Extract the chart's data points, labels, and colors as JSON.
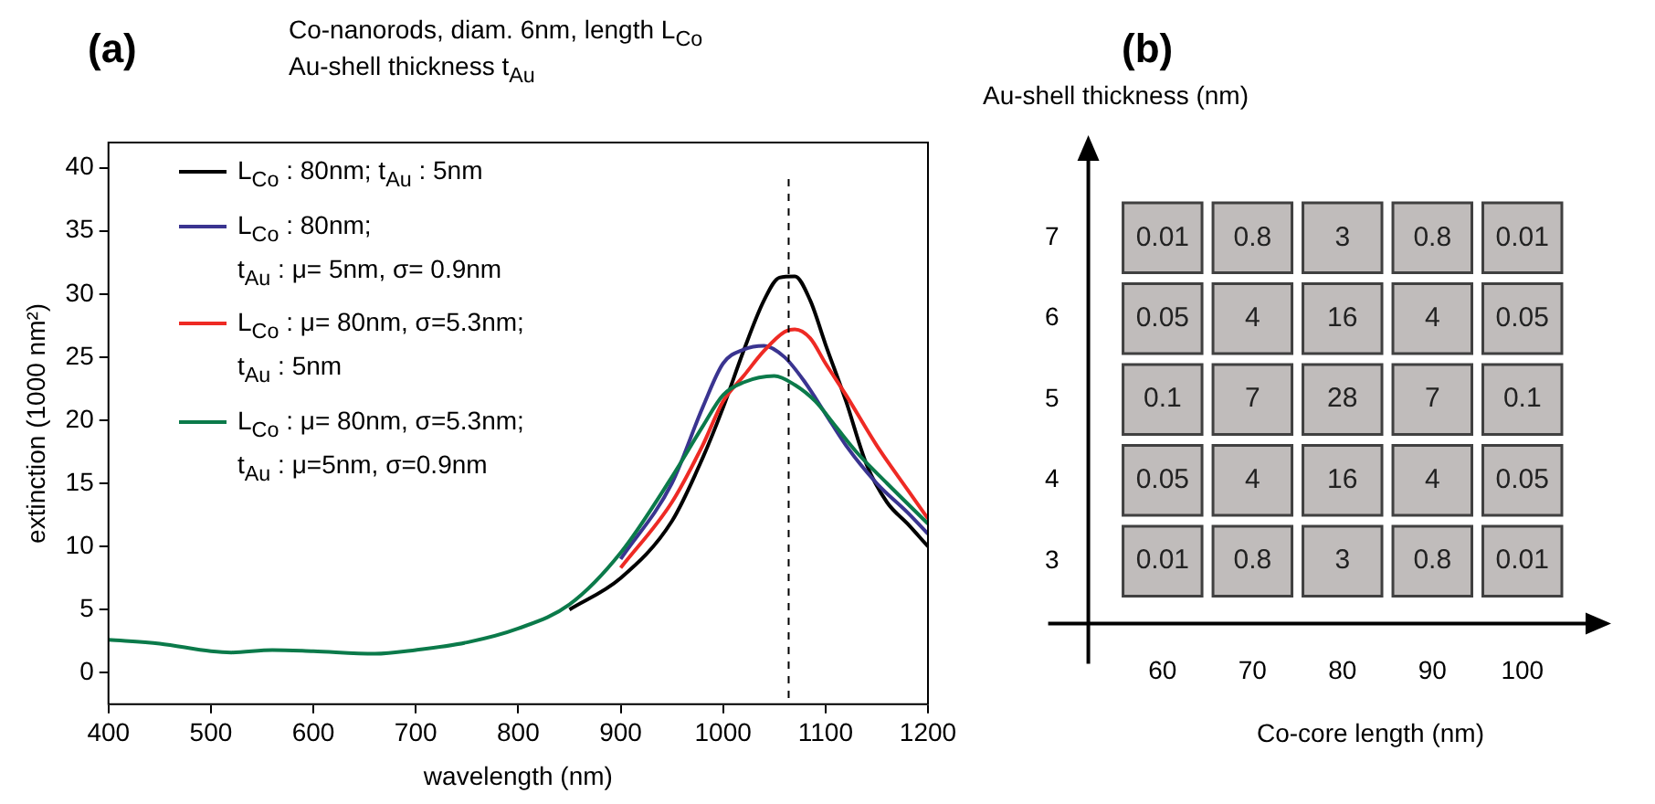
{
  "chart_data": [
    {
      "type": "line",
      "title": "Co-nanorods, diam. 6nm, length L$_{Co}$",
      "subtitle": "Au-shell thickness t$_{Au}$",
      "annotations": [
        "(a)"
      ],
      "xlabel": "wavelength (nm)",
      "ylabel": "extinction (1000 nm²)",
      "xlim": [
        400,
        1200
      ],
      "xticks": [
        400,
        500,
        600,
        700,
        800,
        900,
        1000,
        1100,
        1200
      ],
      "ylim": [
        -2.5,
        42
      ],
      "yticks": [
        0,
        5,
        10,
        15,
        20,
        25,
        30,
        35,
        40
      ],
      "grid": false,
      "legend": "top left",
      "marker": "none",
      "line_style": "solid",
      "ref_lines": [
        {
          "axis": "x",
          "value": 1064,
          "color": "#000000",
          "line_style": "dashed"
        }
      ],
      "series": [
        {
          "name": "L$_{Co}$ : 80nm; t$_{Au}$ : 5nm",
          "color": "#000000",
          "x": [
            850,
            900,
            950,
            980,
            1000,
            1020,
            1040,
            1055,
            1070,
            1085,
            1100,
            1120,
            1140,
            1160,
            1180,
            1200
          ],
          "values": [
            5.0,
            7.5,
            12,
            17,
            21,
            25.5,
            29.5,
            31.3,
            31.4,
            29.5,
            26,
            21.5,
            16.5,
            13.5,
            11.8,
            10
          ]
        },
        {
          "name": "L$_{Co}$ : 80nm;\nt$_{Au}$ : μ= 5nm, σ= 0.9nm",
          "color": "#3a3490",
          "x": [
            900,
            950,
            980,
            1000,
            1020,
            1040,
            1060,
            1080,
            1100,
            1120,
            1150,
            1180,
            1200
          ],
          "values": [
            9,
            15,
            21,
            24.5,
            25.6,
            25.9,
            25,
            23,
            20.5,
            18,
            15,
            12.7,
            11
          ]
        },
        {
          "name": "L$_{Co}$ : μ= 80nm, σ=5.3nm;\nt$_{Au}$ : 5nm",
          "color": "#ee2a24",
          "x": [
            900,
            950,
            980,
            1000,
            1020,
            1040,
            1060,
            1070,
            1085,
            1100,
            1120,
            1150,
            1180,
            1200
          ],
          "values": [
            8.3,
            13.5,
            18,
            21.5,
            23.5,
            25.5,
            27,
            27.2,
            26.5,
            24.5,
            22,
            18,
            14.5,
            12.2
          ]
        },
        {
          "name": "L$_{Co}$ : μ= 80nm, σ=5.3nm;\nt$_{Au}$ : μ=5nm, σ=0.9nm",
          "color": "#0b7a4a",
          "x": [
            400,
            450,
            500,
            520,
            560,
            600,
            660,
            700,
            750,
            800,
            850,
            900,
            950,
            980,
            1000,
            1020,
            1050,
            1070,
            1090,
            1110,
            1130,
            1160,
            1200
          ],
          "values": [
            2.6,
            2.3,
            1.7,
            1.6,
            1.8,
            1.7,
            1.5,
            1.8,
            2.4,
            3.5,
            5.4,
            9.5,
            15.5,
            19.5,
            22,
            23,
            23.5,
            22.8,
            21.5,
            19.5,
            17.5,
            15,
            11.8
          ]
        }
      ]
    },
    {
      "type": "heatmap",
      "annotations": [
        "(b)"
      ],
      "xlabel": "Co-core length (nm)",
      "ylabel": "Au-shell thickness (nm)",
      "color": "#c0bcbb",
      "data_labels": true,
      "categories": [
        "60",
        "70",
        "80",
        "90",
        "100"
      ],
      "y_categories": [
        "7",
        "6",
        "5",
        "4",
        "3"
      ],
      "cells": [
        [
          0.01,
          0.8,
          3,
          0.8,
          0.01
        ],
        [
          0.05,
          4,
          16,
          4,
          0.05
        ],
        [
          0.1,
          7,
          28,
          7,
          0.1
        ],
        [
          0.05,
          4,
          16,
          4,
          0.05
        ],
        [
          0.01,
          0.8,
          3,
          0.8,
          0.01
        ]
      ]
    }
  ]
}
